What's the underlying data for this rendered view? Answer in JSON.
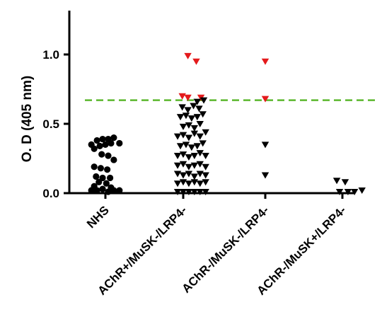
{
  "chart_data": {
    "type": "scatter",
    "title": "",
    "xlabel": "",
    "ylabel": "O. D (405 nm)",
    "ylim": [
      0,
      1.25
    ],
    "yticks": [
      "0.0",
      "0.5",
      "1.0"
    ],
    "yticks_values": [
      0,
      0.5,
      1.0
    ],
    "categories": [
      "NHS",
      "AChR+/MuSK-/LRP4-",
      "AChR-/MuSK-/LRP4-",
      "AChR-/MuSK+/LRP4-"
    ],
    "cutoff": {
      "value": 0.67,
      "color": "#5cb82e",
      "style": "dashed"
    },
    "colors": {
      "black": "#000000",
      "red": "#e41a1c"
    },
    "series": [
      {
        "category": "NHS",
        "marker": "circle",
        "points": [
          {
            "x": -0.3,
            "y": 0.35
          },
          {
            "x": -0.18,
            "y": 0.38
          },
          {
            "x": -0.06,
            "y": 0.39
          },
          {
            "x": 0.06,
            "y": 0.39
          },
          {
            "x": 0.18,
            "y": 0.4
          },
          {
            "x": 0.3,
            "y": 0.36
          },
          {
            "x": -0.24,
            "y": 0.32
          },
          {
            "x": -0.12,
            "y": 0.34
          },
          {
            "x": 0.0,
            "y": 0.35
          },
          {
            "x": 0.12,
            "y": 0.36
          },
          {
            "x": -0.08,
            "y": 0.28
          },
          {
            "x": 0.06,
            "y": 0.27
          },
          {
            "x": 0.18,
            "y": 0.24
          },
          {
            "x": -0.24,
            "y": 0.19
          },
          {
            "x": -0.1,
            "y": 0.18
          },
          {
            "x": 0.04,
            "y": 0.17
          },
          {
            "x": -0.2,
            "y": 0.12
          },
          {
            "x": -0.06,
            "y": 0.11
          },
          {
            "x": 0.1,
            "y": 0.11
          },
          {
            "x": -0.14,
            "y": 0.08
          },
          {
            "x": 0.02,
            "y": 0.07
          },
          {
            "x": -0.3,
            "y": 0.02
          },
          {
            "x": -0.18,
            "y": 0.02
          },
          {
            "x": -0.06,
            "y": 0.03
          },
          {
            "x": 0.06,
            "y": 0.01
          },
          {
            "x": 0.18,
            "y": 0.02
          },
          {
            "x": 0.3,
            "y": 0.02
          },
          {
            "x": -0.24,
            "y": 0.05
          },
          {
            "x": 0.12,
            "y": 0.04
          }
        ]
      },
      {
        "category": "AChR+/MuSK-/LRP4-",
        "marker": "triangle-down",
        "points": [
          {
            "x": 0.1,
            "y": 0.99,
            "color": "red"
          },
          {
            "x": 0.28,
            "y": 0.95,
            "color": "red"
          },
          {
            "x": -0.02,
            "y": 0.7,
            "color": "red"
          },
          {
            "x": 0.1,
            "y": 0.69,
            "color": "red"
          },
          {
            "x": 0.38,
            "y": 0.69,
            "color": "red"
          },
          {
            "x": 0.3,
            "y": 0.66
          },
          {
            "x": 0.44,
            "y": 0.67
          },
          {
            "x": -0.02,
            "y": 0.62
          },
          {
            "x": 0.1,
            "y": 0.6
          },
          {
            "x": 0.22,
            "y": 0.63
          },
          {
            "x": 0.34,
            "y": 0.61
          },
          {
            "x": -0.06,
            "y": 0.55
          },
          {
            "x": 0.06,
            "y": 0.56
          },
          {
            "x": 0.18,
            "y": 0.54
          },
          {
            "x": 0.3,
            "y": 0.55
          },
          {
            "x": 0.42,
            "y": 0.57
          },
          {
            "x": 0.0,
            "y": 0.48
          },
          {
            "x": 0.12,
            "y": 0.49
          },
          {
            "x": 0.24,
            "y": 0.47
          },
          {
            "x": 0.36,
            "y": 0.5
          },
          {
            "x": -0.12,
            "y": 0.41
          },
          {
            "x": 0.0,
            "y": 0.42
          },
          {
            "x": 0.12,
            "y": 0.4
          },
          {
            "x": 0.24,
            "y": 0.43
          },
          {
            "x": 0.36,
            "y": 0.41
          },
          {
            "x": 0.48,
            "y": 0.44
          },
          {
            "x": -0.06,
            "y": 0.34
          },
          {
            "x": 0.06,
            "y": 0.35
          },
          {
            "x": 0.18,
            "y": 0.33
          },
          {
            "x": 0.3,
            "y": 0.34
          },
          {
            "x": 0.42,
            "y": 0.36
          },
          {
            "x": -0.12,
            "y": 0.27
          },
          {
            "x": 0.0,
            "y": 0.28
          },
          {
            "x": 0.12,
            "y": 0.26
          },
          {
            "x": 0.24,
            "y": 0.27
          },
          {
            "x": 0.36,
            "y": 0.29
          },
          {
            "x": 0.48,
            "y": 0.27
          },
          {
            "x": -0.12,
            "y": 0.2
          },
          {
            "x": 0.0,
            "y": 0.21
          },
          {
            "x": 0.12,
            "y": 0.19
          },
          {
            "x": 0.24,
            "y": 0.2
          },
          {
            "x": 0.36,
            "y": 0.21
          },
          {
            "x": 0.48,
            "y": 0.19
          },
          {
            "x": -0.12,
            "y": 0.14
          },
          {
            "x": 0.0,
            "y": 0.13
          },
          {
            "x": 0.12,
            "y": 0.14
          },
          {
            "x": 0.24,
            "y": 0.12
          },
          {
            "x": 0.36,
            "y": 0.14
          },
          {
            "x": 0.48,
            "y": 0.13
          },
          {
            "x": -0.12,
            "y": 0.07
          },
          {
            "x": 0.0,
            "y": 0.08
          },
          {
            "x": 0.12,
            "y": 0.07
          },
          {
            "x": 0.24,
            "y": 0.08
          },
          {
            "x": 0.36,
            "y": 0.07
          },
          {
            "x": 0.48,
            "y": 0.08
          },
          {
            "x": -0.12,
            "y": 0.01
          },
          {
            "x": 0.0,
            "y": 0.01
          },
          {
            "x": 0.12,
            "y": 0.01
          },
          {
            "x": 0.24,
            "y": 0.01
          },
          {
            "x": 0.36,
            "y": 0.01
          },
          {
            "x": 0.48,
            "y": 0.01
          }
        ]
      },
      {
        "category": "AChR-/MuSK-/LRP4-",
        "marker": "triangle-down",
        "points": [
          {
            "x": 0.0,
            "y": 0.95,
            "color": "red"
          },
          {
            "x": 0.0,
            "y": 0.68,
            "color": "red"
          },
          {
            "x": 0.0,
            "y": 0.35
          },
          {
            "x": 0.0,
            "y": 0.13
          }
        ]
      },
      {
        "category": "AChR-/MuSK+/LRP4-",
        "marker": "triangle-down",
        "points": [
          {
            "x": -0.12,
            "y": 0.09
          },
          {
            "x": 0.06,
            "y": 0.08
          },
          {
            "x": -0.06,
            "y": 0.01
          },
          {
            "x": 0.12,
            "y": 0.01
          },
          {
            "x": 0.26,
            "y": 0.01
          },
          {
            "x": 0.42,
            "y": 0.02
          }
        ]
      }
    ]
  }
}
